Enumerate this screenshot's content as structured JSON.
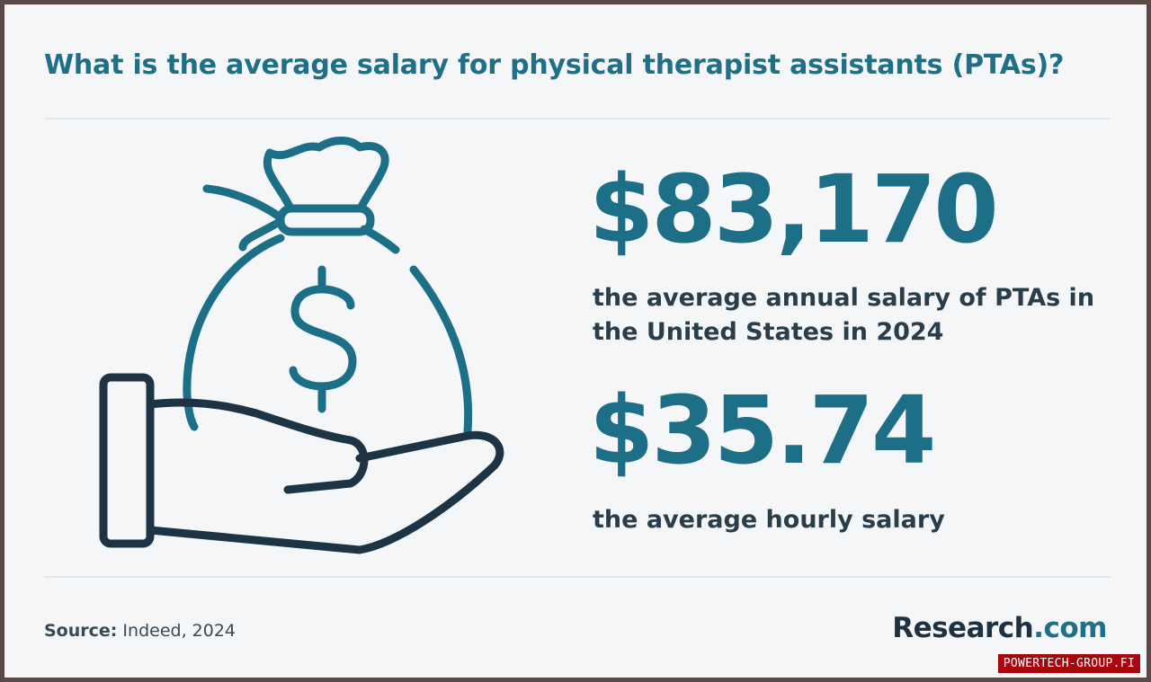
{
  "title": "What is the average salary for physical therapist assistants (PTAs)?",
  "stats": {
    "annual": {
      "value": "$83,170",
      "description": "the average annual salary of PTAs in the United States in 2024"
    },
    "hourly": {
      "value": "$35.74",
      "description": "the average hourly salary"
    }
  },
  "source": {
    "label": "Source:",
    "text": " Indeed, 2024"
  },
  "brand": {
    "name": "Research",
    "dot_suffix": ".com"
  },
  "watermark": "POWERTECH-GROUP.FI",
  "icons": {
    "illustration": "hand-holding-money-bag-icon"
  },
  "colors": {
    "accent": "#1d6f88",
    "outline_dark": "#1c3444",
    "text_dark": "#2a3d4a",
    "background": "#f4f6f7",
    "watermark_bg": "#a8060f"
  }
}
